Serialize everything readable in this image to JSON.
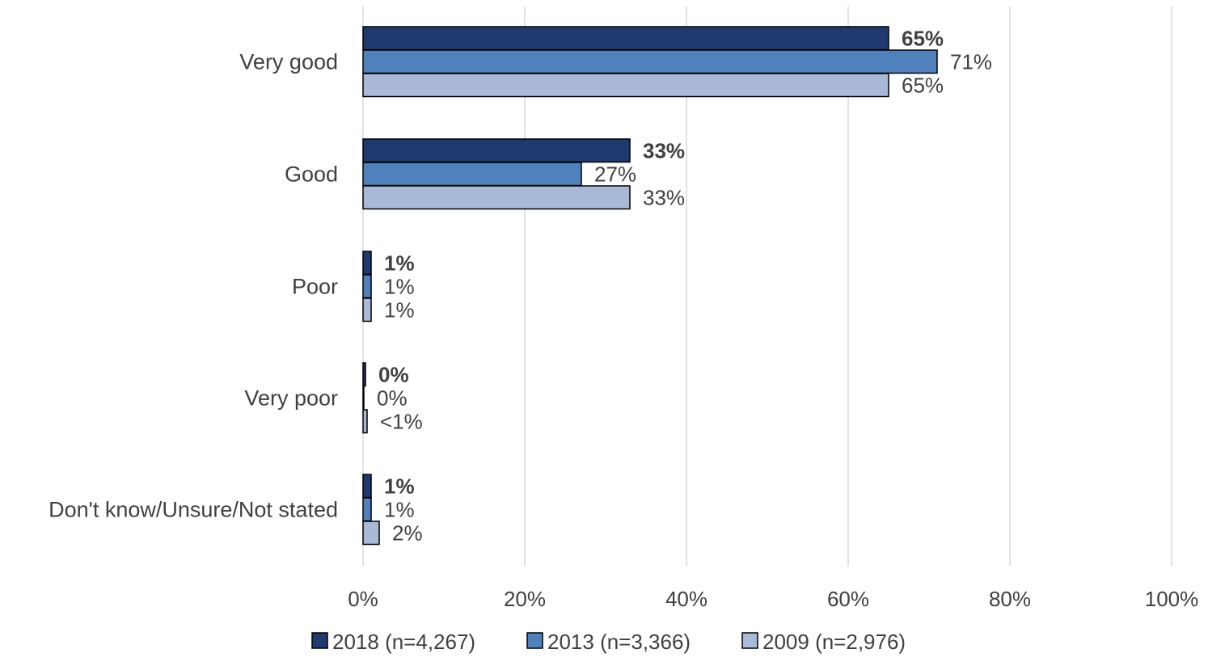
{
  "chart_data": {
    "type": "bar",
    "orientation": "horizontal",
    "categories": [
      "Very good",
      "Good",
      "Poor",
      "Very poor",
      "Don't know/Unsure/Not stated"
    ],
    "series": [
      {
        "name": "2018 (n=4,267)",
        "values": [
          65,
          33,
          1,
          0.3,
          1
        ],
        "labels": [
          "65%",
          "33%",
          "1%",
          "0%",
          "1%"
        ],
        "color": "#1f3a6e",
        "label_weight": "bold"
      },
      {
        "name": "2013 (n=3,366)",
        "values": [
          71,
          27,
          1,
          0.1,
          1
        ],
        "labels": [
          "71%",
          "27%",
          "1%",
          "0%",
          "1%"
        ],
        "color": "#4f81bd",
        "label_weight": "normal"
      },
      {
        "name": "2009 (n=2,976)",
        "values": [
          65,
          33,
          1,
          0.5,
          2
        ],
        "labels": [
          "65%",
          "33%",
          "1%",
          "<1%",
          "2%"
        ],
        "color": "#a9b9d8",
        "label_weight": "normal"
      }
    ],
    "xlim": [
      0,
      100
    ],
    "x_ticks": [
      0,
      20,
      40,
      60,
      80,
      100
    ],
    "x_tick_labels": [
      "0%",
      "20%",
      "40%",
      "60%",
      "80%",
      "100%"
    ],
    "grid": "vertical",
    "legend_position": "bottom",
    "title": "",
    "xlabel": "",
    "ylabel": "",
    "colors": {
      "grid": "#d9d9d9",
      "text": "#404040",
      "bar_border": "#000000"
    }
  }
}
